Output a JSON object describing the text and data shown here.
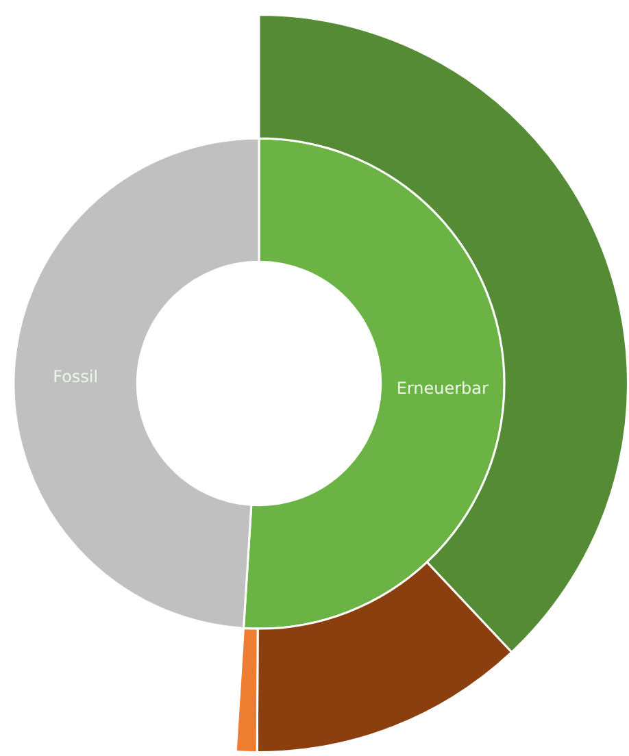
{
  "chart_data": {
    "type": "donut",
    "categories": [
      "Erneuerbar",
      "Fossil",
      null,
      null,
      null
    ],
    "series": [
      {
        "values": [
          51,
          49,
          null,
          null,
          null
        ],
        "colors": [
          "#6ab344",
          "#c0c0c0",
          null,
          null,
          null
        ]
      },
      {
        "values": [
          null,
          null,
          74.5,
          23.7,
          1.8
        ],
        "colors": [
          null,
          null,
          "#558b35",
          "#8b3f0e",
          "#ed7d31"
        ]
      }
    ]
  }
}
